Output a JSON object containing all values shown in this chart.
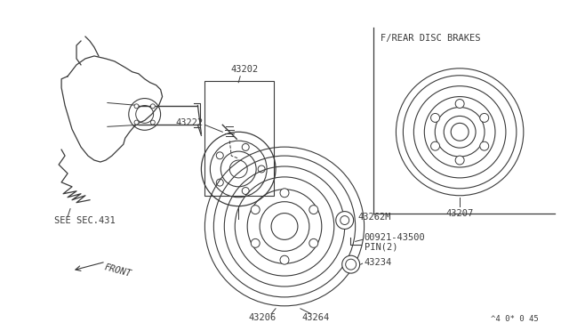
{
  "bg_color": "#ffffff",
  "line_color": "#3a3a3a",
  "footer_text": "^4 0* 0 45",
  "see_sec_label": "SEE SEC.431",
  "front_label": "FRONT",
  "inset_label": "F/REAR DISC BRAKES",
  "fig_w": 6.4,
  "fig_h": 3.72,
  "dpi": 100
}
